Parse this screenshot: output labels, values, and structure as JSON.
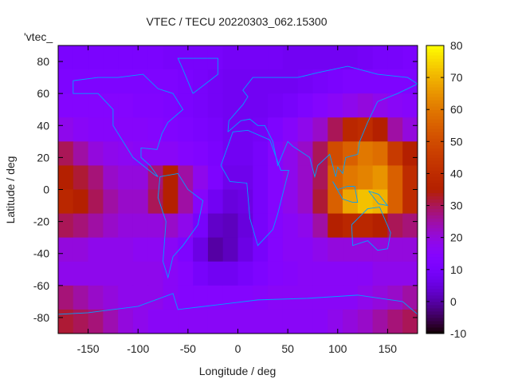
{
  "chart_data": {
    "type": "heatmap",
    "title": "VTEC / TECU 20220303_062.15300",
    "xlabel": "Longitude / deg",
    "ylabel": "Latitude / deg",
    "key_label": "'vtec_",
    "xlim": [
      -180,
      180
    ],
    "ylim": [
      -90,
      90
    ],
    "xticks": [
      -150,
      -100,
      -50,
      0,
      50,
      100,
      150
    ],
    "yticks": [
      -80,
      -60,
      -40,
      -20,
      0,
      20,
      40,
      60,
      80
    ],
    "colorbar": {
      "range": [
        -10,
        80
      ],
      "ticks": [
        -10,
        0,
        10,
        20,
        30,
        40,
        50,
        60,
        70,
        80
      ],
      "palette": "black-blue-violet-red-yellow"
    },
    "coastline_color": "#00a0ff",
    "lon_centers": [
      -172.5,
      -157.5,
      -142.5,
      -127.5,
      -112.5,
      -97.5,
      -82.5,
      -67.5,
      -52.5,
      -37.5,
      -22.5,
      -7.5,
      7.5,
      22.5,
      37.5,
      52.5,
      67.5,
      82.5,
      97.5,
      112.5,
      127.5,
      142.5,
      157.5,
      172.5
    ],
    "lat_centers": [
      82.5,
      67.5,
      52.5,
      37.5,
      22.5,
      7.5,
      -7.5,
      -22.5,
      -37.5,
      -52.5,
      -67.5,
      -82.5
    ],
    "values": [
      [
        11,
        11,
        11,
        11,
        11,
        11,
        11,
        10,
        10,
        10,
        10,
        9,
        9,
        9,
        9,
        8,
        8,
        8,
        8,
        8,
        9,
        10,
        10,
        11
      ],
      [
        12,
        12,
        12,
        12,
        12,
        12,
        12,
        12,
        11,
        10,
        9,
        8,
        8,
        8,
        8,
        8,
        9,
        10,
        11,
        12,
        12,
        12,
        12,
        12
      ],
      [
        14,
        14,
        14,
        14,
        14,
        13,
        13,
        12,
        11,
        10,
        9,
        8,
        8,
        8,
        9,
        10,
        12,
        14,
        16,
        18,
        20,
        18,
        16,
        15
      ],
      [
        18,
        16,
        15,
        15,
        15,
        15,
        14,
        13,
        12,
        11,
        10,
        8,
        8,
        9,
        12,
        15,
        18,
        22,
        30,
        38,
        40,
        35,
        25,
        20
      ],
      [
        30,
        25,
        20,
        18,
        17,
        16,
        16,
        16,
        14,
        13,
        11,
        8,
        8,
        10,
        14,
        18,
        22,
        30,
        50,
        55,
        60,
        58,
        45,
        35
      ],
      [
        35,
        32,
        28,
        22,
        20,
        20,
        28,
        35,
        25,
        18,
        12,
        7,
        7,
        10,
        14,
        18,
        22,
        30,
        55,
        60,
        62,
        65,
        55,
        40
      ],
      [
        38,
        35,
        30,
        25,
        22,
        22,
        30,
        35,
        25,
        15,
        8,
        5,
        6,
        10,
        14,
        18,
        22,
        32,
        55,
        68,
        72,
        70,
        55,
        40
      ],
      [
        30,
        28,
        25,
        22,
        20,
        20,
        20,
        22,
        18,
        10,
        3,
        2,
        5,
        10,
        14,
        16,
        18,
        25,
        35,
        38,
        38,
        35,
        30,
        28
      ],
      [
        20,
        20,
        18,
        18,
        18,
        17,
        17,
        16,
        12,
        6,
        0,
        2,
        6,
        10,
        14,
        16,
        16,
        18,
        20,
        20,
        20,
        20,
        20,
        20
      ],
      [
        18,
        18,
        18,
        18,
        18,
        18,
        18,
        16,
        14,
        10,
        8,
        8,
        10,
        12,
        14,
        15,
        16,
        16,
        16,
        16,
        16,
        18,
        18,
        18
      ],
      [
        28,
        25,
        22,
        20,
        18,
        18,
        18,
        16,
        14,
        14,
        14,
        14,
        14,
        15,
        16,
        16,
        16,
        16,
        16,
        16,
        18,
        20,
        22,
        25
      ],
      [
        32,
        30,
        28,
        24,
        20,
        18,
        16,
        16,
        16,
        16,
        16,
        16,
        16,
        16,
        16,
        16,
        16,
        16,
        18,
        20,
        22,
        25,
        28,
        30
      ]
    ]
  }
}
